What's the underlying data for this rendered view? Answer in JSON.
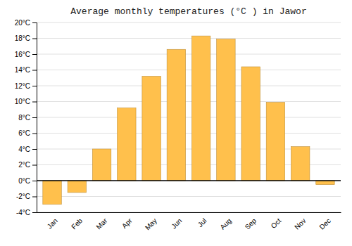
{
  "chart_data": {
    "type": "bar",
    "title": "Average monthly temperatures (°C ) in Jawor",
    "categories": [
      "Jan",
      "Feb",
      "Mar",
      "Apr",
      "May",
      "Jun",
      "Jul",
      "Aug",
      "Sep",
      "Oct",
      "Nov",
      "Dec"
    ],
    "values": [
      -3.0,
      -1.5,
      4.0,
      9.2,
      13.2,
      16.6,
      18.3,
      17.9,
      14.4,
      9.9,
      4.3,
      -0.5
    ],
    "color": "#FFC04C",
    "ylim": [
      -4,
      20
    ],
    "yticks": [
      {
        "value": -4,
        "label": "-4°C"
      },
      {
        "value": -2,
        "label": "-2°C"
      },
      {
        "value": 0,
        "label": "0°C"
      },
      {
        "value": 2,
        "label": "2°C"
      },
      {
        "value": 4,
        "label": "4°C"
      },
      {
        "value": 6,
        "label": "6°C"
      },
      {
        "value": 8,
        "label": "8°C"
      },
      {
        "value": 10,
        "label": "10°C"
      },
      {
        "value": 12,
        "label": "12°C"
      },
      {
        "value": 14,
        "label": "14°C"
      },
      {
        "value": 16,
        "label": "16°C"
      },
      {
        "value": 18,
        "label": "18°C"
      },
      {
        "value": 20,
        "label": "20°C"
      }
    ],
    "grid": true
  }
}
